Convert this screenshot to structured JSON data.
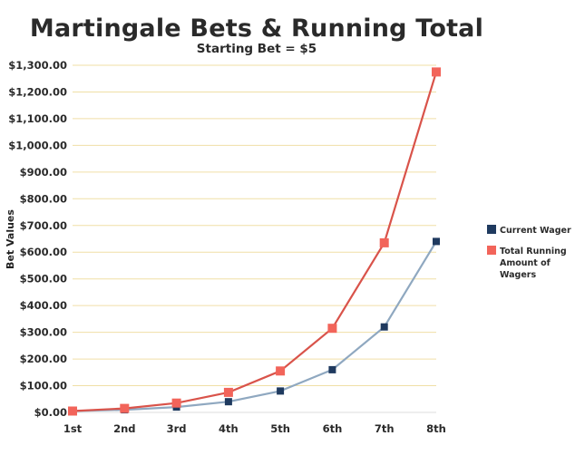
{
  "chart_data": {
    "type": "line",
    "title": "Martingale Bets & Running Total",
    "subtitle": "Starting Bet = $5",
    "ylabel": "Bet Values",
    "xlabel": "",
    "categories": [
      "1st",
      "2nd",
      "3rd",
      "4th",
      "5th",
      "6th",
      "7th",
      "8th"
    ],
    "ylim": [
      0,
      1300
    ],
    "y_ticks": [
      0,
      100,
      200,
      300,
      400,
      500,
      600,
      700,
      800,
      900,
      1000,
      1100,
      1200,
      1300
    ],
    "y_tick_labels": [
      "$0.00",
      "$100.00",
      "$200.00",
      "$300.00",
      "$400.00",
      "$500.00",
      "$600.00",
      "$700.00",
      "$800.00",
      "$900.00",
      "$1,000.00",
      "$1,100.00",
      "$1,200.00",
      "$1,300.00"
    ],
    "grid": true,
    "legend_position": "right",
    "series": [
      {
        "name": "Current Wager",
        "values": [
          5,
          10,
          20,
          40,
          80,
          160,
          320,
          640
        ],
        "color": "#1f3a5f",
        "line_color": "#8fa8c0"
      },
      {
        "name": "Total Running Amount of Wagers",
        "legend_lines": [
          "Total Running",
          "Amount of",
          "Wagers"
        ],
        "values": [
          5,
          15,
          35,
          75,
          155,
          315,
          635,
          1275
        ],
        "color": "#f2645a",
        "line_color": "#d9534a"
      }
    ]
  }
}
